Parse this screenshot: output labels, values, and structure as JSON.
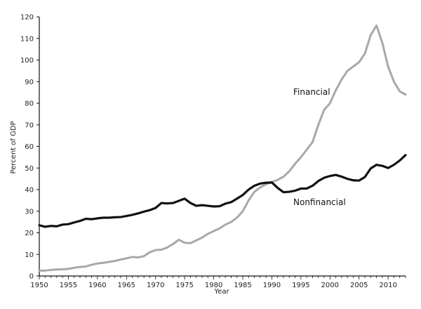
{
  "chart_data": {
    "type": "line",
    "xlabel": "Year",
    "ylabel": "Percent of GDP",
    "xlim": [
      1950,
      2013
    ],
    "ylim": [
      0,
      120
    ],
    "x_ticks": [
      1950,
      1955,
      1960,
      1965,
      1970,
      1975,
      1980,
      1985,
      1990,
      1995,
      2000,
      2005,
      2010
    ],
    "x_tick_labels": [
      "1950",
      "1955",
      "1960",
      "1965",
      "1970",
      "1975",
      "1980",
      "1985",
      "1990",
      "1995",
      "2000",
      "2005",
      "2010"
    ],
    "y_ticks": [
      0,
      10,
      20,
      30,
      40,
      50,
      60,
      70,
      80,
      90,
      100,
      110,
      120
    ],
    "y_tick_labels": [
      "0",
      "10",
      "20",
      "30",
      "40",
      "50",
      "60",
      "70",
      "80",
      "90",
      "100",
      "110",
      "120"
    ],
    "grid": false,
    "legend": "none",
    "x": [
      1950,
      1951,
      1952,
      1953,
      1954,
      1955,
      1956,
      1957,
      1958,
      1959,
      1960,
      1961,
      1962,
      1963,
      1964,
      1965,
      1966,
      1967,
      1968,
      1969,
      1970,
      1971,
      1972,
      1973,
      1974,
      1975,
      1976,
      1977,
      1978,
      1979,
      1980,
      1981,
      1982,
      1983,
      1984,
      1985,
      1986,
      1987,
      1988,
      1989,
      1990,
      1991,
      1992,
      1993,
      1994,
      1995,
      1996,
      1997,
      1998,
      1999,
      2000,
      2001,
      2002,
      2003,
      2004,
      2005,
      2006,
      2007,
      2008,
      2009,
      2010,
      2011,
      2012,
      2013
    ],
    "series": [
      {
        "name": "Financial",
        "color": "#a8a8a8",
        "values": [
          2.5,
          2.5,
          2.8,
          3.0,
          3.1,
          3.3,
          3.8,
          4.2,
          4.4,
          5.2,
          5.8,
          6.1,
          6.5,
          7.0,
          7.6,
          8.2,
          8.8,
          8.6,
          9.2,
          11.0,
          12.0,
          12.2,
          13.2,
          14.8,
          16.8,
          15.4,
          15.2,
          16.5,
          17.8,
          19.5,
          20.8,
          22.0,
          23.8,
          25.0,
          27.0,
          30.0,
          35.0,
          39.0,
          41.0,
          42.5,
          43.5,
          44.5,
          46.0,
          48.5,
          52.0,
          55.0,
          58.5,
          62.0,
          70.0,
          77.0,
          80.0,
          86.0,
          91.0,
          95.0,
          97.0,
          99.0,
          103.0,
          111.5,
          116.0,
          108.0,
          97.0,
          90.0,
          85.5,
          84.0
        ]
      },
      {
        "name": "Nonfinancial",
        "color": "#111111",
        "values": [
          23.5,
          22.8,
          23.2,
          23.0,
          23.8,
          24.0,
          24.8,
          25.5,
          26.5,
          26.3,
          26.7,
          27.0,
          27.0,
          27.2,
          27.3,
          27.8,
          28.3,
          29.0,
          29.8,
          30.5,
          31.5,
          33.8,
          33.6,
          33.8,
          34.8,
          35.8,
          33.8,
          32.5,
          32.8,
          32.5,
          32.2,
          32.3,
          33.5,
          34.2,
          35.8,
          37.5,
          40.0,
          41.8,
          42.8,
          43.2,
          43.3,
          40.8,
          38.8,
          39.0,
          39.5,
          40.5,
          40.5,
          41.8,
          44.0,
          45.5,
          46.3,
          46.8,
          46.0,
          45.0,
          44.3,
          44.2,
          45.8,
          49.8,
          51.5,
          51.0,
          50.0,
          51.5,
          53.5,
          56.0
        ]
      }
    ]
  }
}
